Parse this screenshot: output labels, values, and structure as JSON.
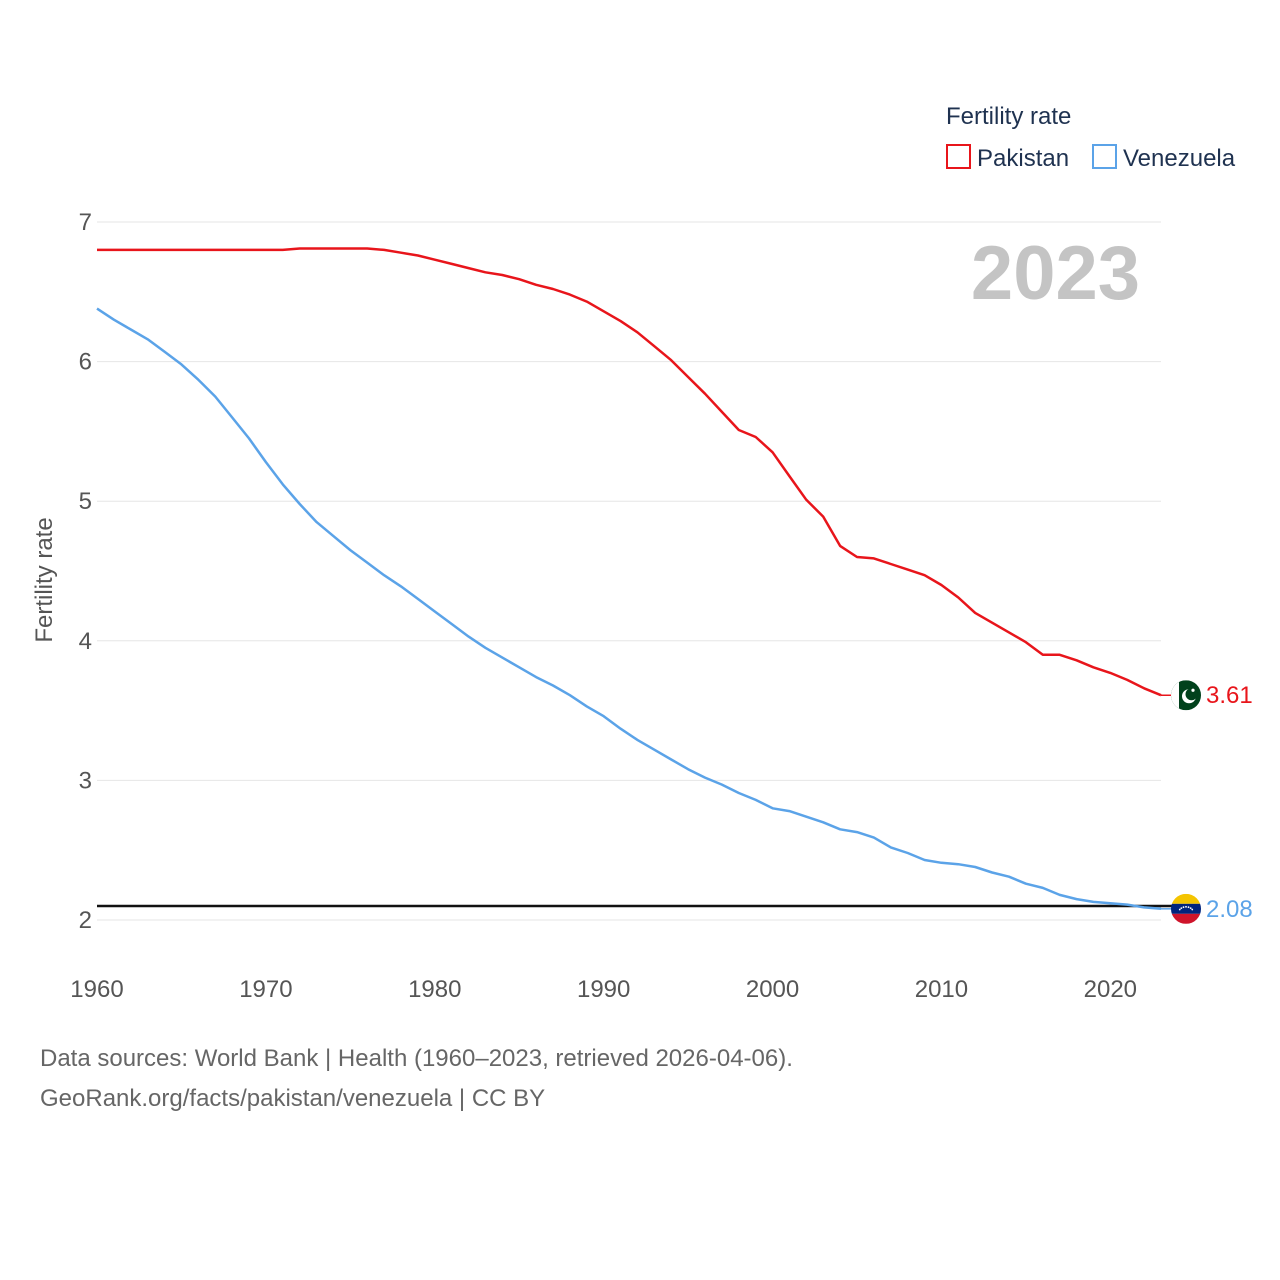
{
  "chart_data": {
    "type": "line",
    "ylabel": "Fertility rate",
    "xlabel": "",
    "year_label": "2023",
    "legend_title": "Fertility rate",
    "ylim": [
      2,
      7
    ],
    "xlim": [
      1960,
      2023
    ],
    "y_ticks": [
      2,
      3,
      4,
      5,
      6,
      7
    ],
    "x_ticks": [
      1960,
      1970,
      1980,
      1990,
      2000,
      2010,
      2020
    ],
    "reference_line": 2.1,
    "x": [
      1960,
      1961,
      1962,
      1963,
      1964,
      1965,
      1966,
      1967,
      1968,
      1969,
      1970,
      1971,
      1972,
      1973,
      1974,
      1975,
      1976,
      1977,
      1978,
      1979,
      1980,
      1981,
      1982,
      1983,
      1984,
      1985,
      1986,
      1987,
      1988,
      1989,
      1990,
      1991,
      1992,
      1993,
      1994,
      1995,
      1996,
      1997,
      1998,
      1999,
      2000,
      2001,
      2002,
      2003,
      2004,
      2005,
      2006,
      2007,
      2008,
      2009,
      2010,
      2011,
      2012,
      2013,
      2014,
      2015,
      2016,
      2017,
      2018,
      2019,
      2020,
      2021,
      2022,
      2023
    ],
    "series": [
      {
        "name": "Pakistan",
        "color": "#e8151b",
        "end_label": "3.61",
        "flag": "pakistan-flag",
        "values": [
          6.8,
          6.8,
          6.8,
          6.8,
          6.8,
          6.8,
          6.8,
          6.8,
          6.8,
          6.8,
          6.8,
          6.8,
          6.81,
          6.81,
          6.81,
          6.81,
          6.81,
          6.8,
          6.78,
          6.76,
          6.73,
          6.7,
          6.67,
          6.64,
          6.62,
          6.59,
          6.55,
          6.52,
          6.48,
          6.43,
          6.36,
          6.29,
          6.21,
          6.11,
          6.01,
          5.89,
          5.77,
          5.64,
          5.51,
          5.46,
          5.35,
          5.18,
          5.01,
          4.89,
          4.68,
          4.6,
          4.59,
          4.55,
          4.51,
          4.47,
          4.4,
          4.31,
          4.2,
          4.13,
          4.06,
          3.99,
          3.9,
          3.9,
          3.86,
          3.81,
          3.77,
          3.72,
          3.66,
          3.61
        ]
      },
      {
        "name": "Venezuela",
        "color": "#5ba3e8",
        "end_label": "2.08",
        "flag": "venezuela-flag",
        "values": [
          6.38,
          6.3,
          6.23,
          6.16,
          6.07,
          5.98,
          5.87,
          5.75,
          5.6,
          5.45,
          5.28,
          5.12,
          4.98,
          4.85,
          4.75,
          4.65,
          4.56,
          4.47,
          4.39,
          4.3,
          4.21,
          4.12,
          4.03,
          3.95,
          3.88,
          3.81,
          3.74,
          3.68,
          3.61,
          3.53,
          3.46,
          3.37,
          3.29,
          3.22,
          3.15,
          3.08,
          3.02,
          2.97,
          2.91,
          2.86,
          2.8,
          2.78,
          2.74,
          2.7,
          2.65,
          2.63,
          2.59,
          2.52,
          2.48,
          2.43,
          2.41,
          2.4,
          2.38,
          2.34,
          2.31,
          2.26,
          2.23,
          2.18,
          2.15,
          2.13,
          2.12,
          2.11,
          2.09,
          2.08
        ]
      }
    ]
  },
  "footer": {
    "sources": "Data sources: World Bank | Health (1960–2023, retrieved 2026-04-06).",
    "credit": "GeoRank.org/facts/pakistan/venezuela | CC BY"
  }
}
